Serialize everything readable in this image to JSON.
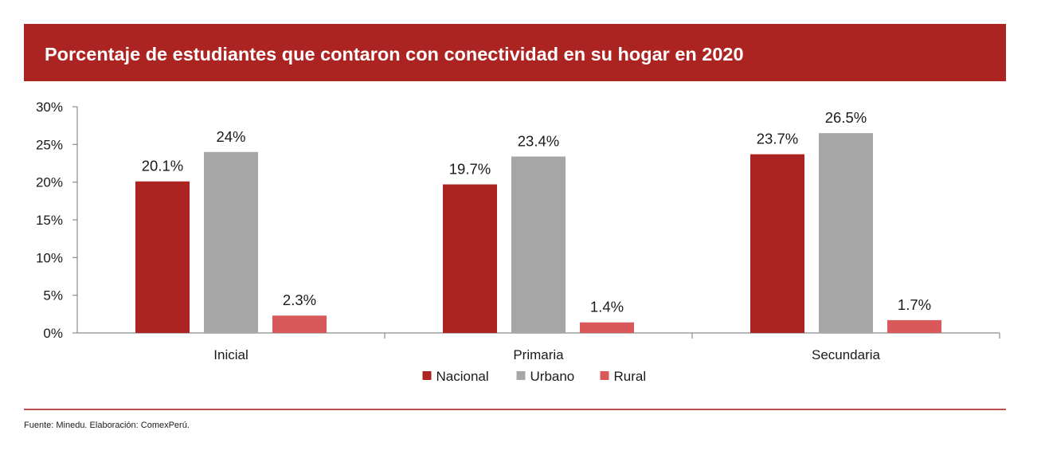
{
  "header": {
    "title": "Porcentaje de estudiantes que contaron con conectividad en su hogar en 2020"
  },
  "chart_data": {
    "type": "bar",
    "title": "Porcentaje de estudiantes que contaron con conectividad en su hogar en 2020",
    "xlabel": "",
    "ylabel": "",
    "ylim": [
      0,
      30
    ],
    "yticks": [
      0,
      5,
      10,
      15,
      20,
      25,
      30
    ],
    "ytick_labels": [
      "0%",
      "5%",
      "10%",
      "15%",
      "20%",
      "25%",
      "30%"
    ],
    "grid": false,
    "legend_position": "bottom",
    "categories": [
      "Inicial",
      "Primaria",
      "Secundaria"
    ],
    "series": [
      {
        "name": "Nacional",
        "values": [
          20.1,
          19.7,
          23.7
        ],
        "labels": [
          "20.1%",
          "19.7%",
          "23.7%"
        ],
        "color": "#ac2422"
      },
      {
        "name": "Urbano",
        "values": [
          24,
          23.4,
          26.5
        ],
        "labels": [
          "24%",
          "23.4%",
          "26.5%"
        ],
        "color": "#a6a6a6"
      },
      {
        "name": "Rural",
        "values": [
          2.3,
          1.4,
          1.7
        ],
        "labels": [
          "2.3%",
          "1.4%",
          "1.7%"
        ],
        "color": "#d9585a"
      }
    ]
  },
  "footer": {
    "source": "Fuente: Minedu. Elaboración: ComexPerú."
  }
}
